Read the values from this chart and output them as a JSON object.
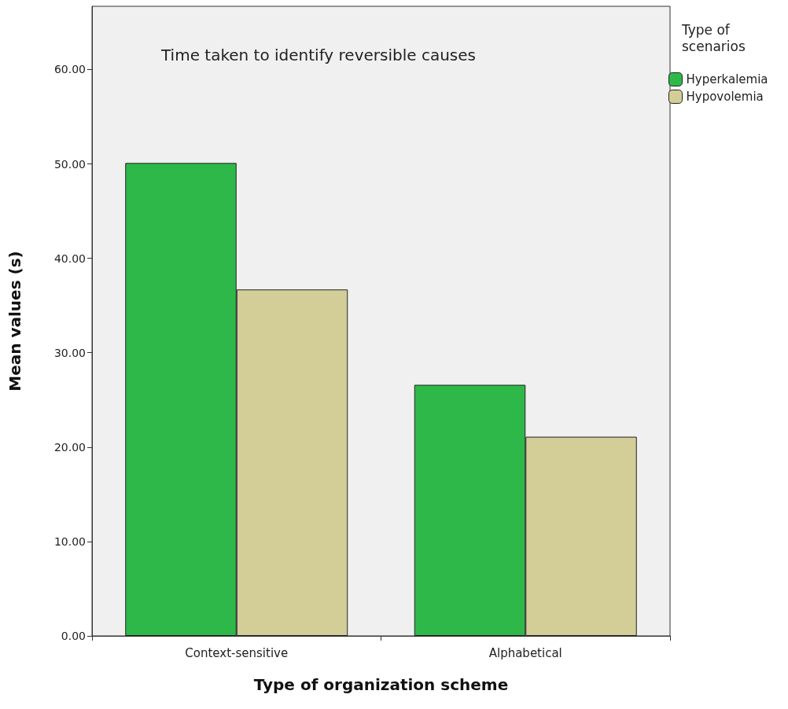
{
  "chart_data": {
    "type": "bar",
    "title": "Time taken to identify reversible causes",
    "xlabel": "Type of organization scheme",
    "ylabel": "Mean values (s)",
    "legend_title": "Type of scenarios",
    "categories": [
      "Context-sensitive",
      "Alphabetical"
    ],
    "series": [
      {
        "name": "Hyperkalemia",
        "color": "#2eb84a",
        "values": [
          50.1,
          26.6
        ]
      },
      {
        "name": "Hypovolemia",
        "color": "#d3cd98",
        "values": [
          36.7,
          21.1
        ]
      }
    ],
    "ylim": [
      0,
      66.7
    ],
    "yticks": [
      {
        "value": 0,
        "label": "0.00"
      },
      {
        "value": 10,
        "label": "10.00"
      },
      {
        "value": 20,
        "label": "20.00"
      },
      {
        "value": 30,
        "label": "30.00"
      },
      {
        "value": 40,
        "label": "40.00"
      },
      {
        "value": 50,
        "label": "50.00"
      },
      {
        "value": 60,
        "label": "60.00"
      }
    ],
    "grid": false,
    "legend": "right"
  }
}
